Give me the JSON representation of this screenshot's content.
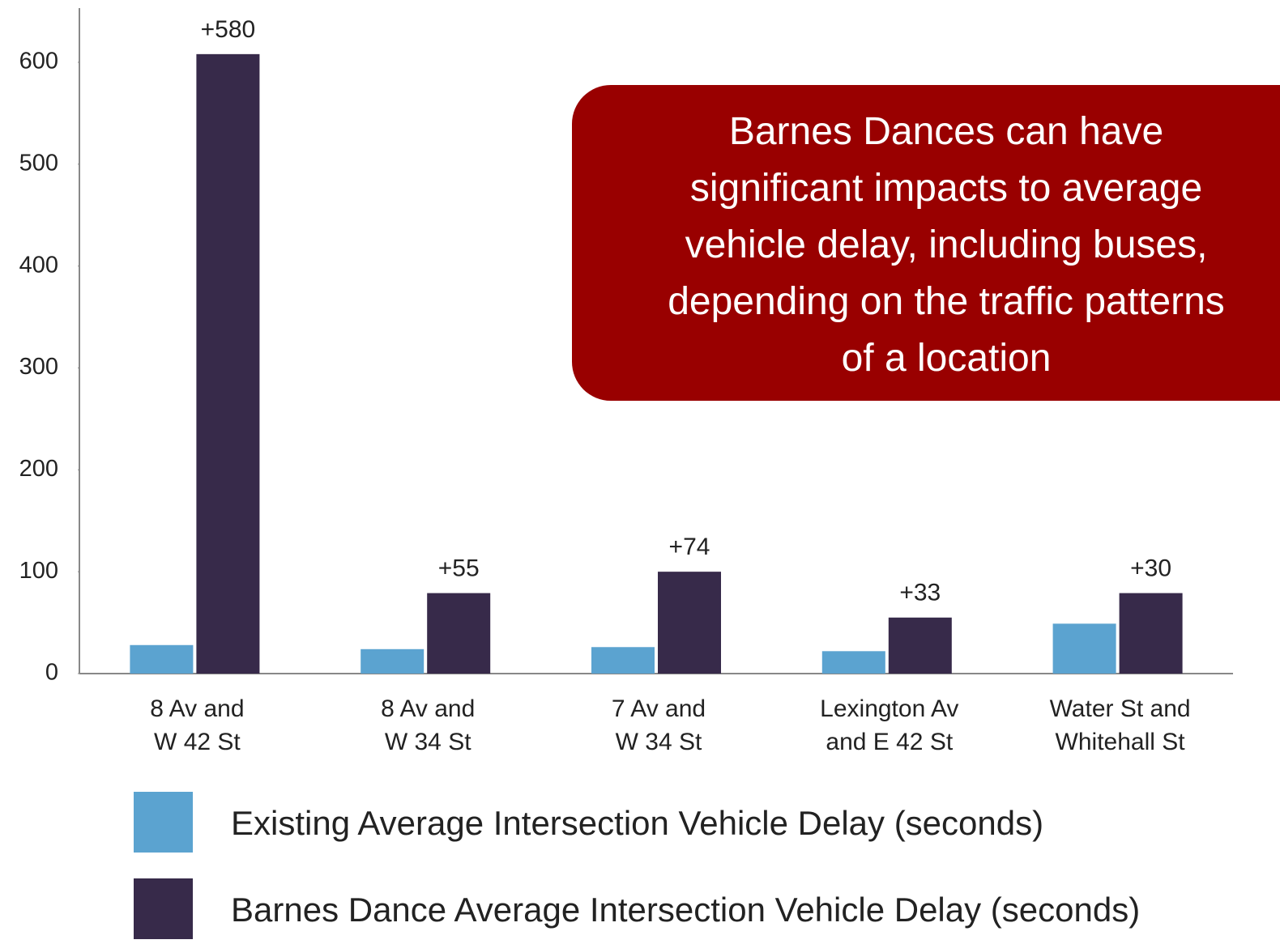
{
  "chart_data": {
    "type": "bar",
    "categories": [
      [
        "8 Av and",
        "W 42 St"
      ],
      [
        "8 Av and",
        "W 34 St"
      ],
      [
        "7 Av and",
        "W 34 St"
      ],
      [
        "Lexington Av",
        "and E 42 St"
      ],
      [
        "Water St and",
        "Whitehall St"
      ]
    ],
    "series": [
      {
        "name": "Existing Average Intersection Vehicle Delay (seconds)",
        "color": "#5ba3d0",
        "values": [
          28,
          24,
          26,
          22,
          49
        ]
      },
      {
        "name": "Barnes Dance Average Intersection Vehicle Delay (seconds)",
        "color": "#372a4a",
        "values": [
          608,
          79,
          100,
          55,
          79
        ]
      }
    ],
    "change_labels": [
      "+580",
      "+55",
      "+74",
      "+33",
      "+30"
    ],
    "ylim": [
      0,
      650
    ],
    "yticks": [
      0,
      100,
      200,
      300,
      400,
      500,
      600
    ],
    "callout": [
      "Barnes Dances can have",
      "significant impacts to average",
      "vehicle delay, including buses,",
      "depending on the traffic patterns",
      "of a location"
    ],
    "callout_color": "#990000"
  }
}
